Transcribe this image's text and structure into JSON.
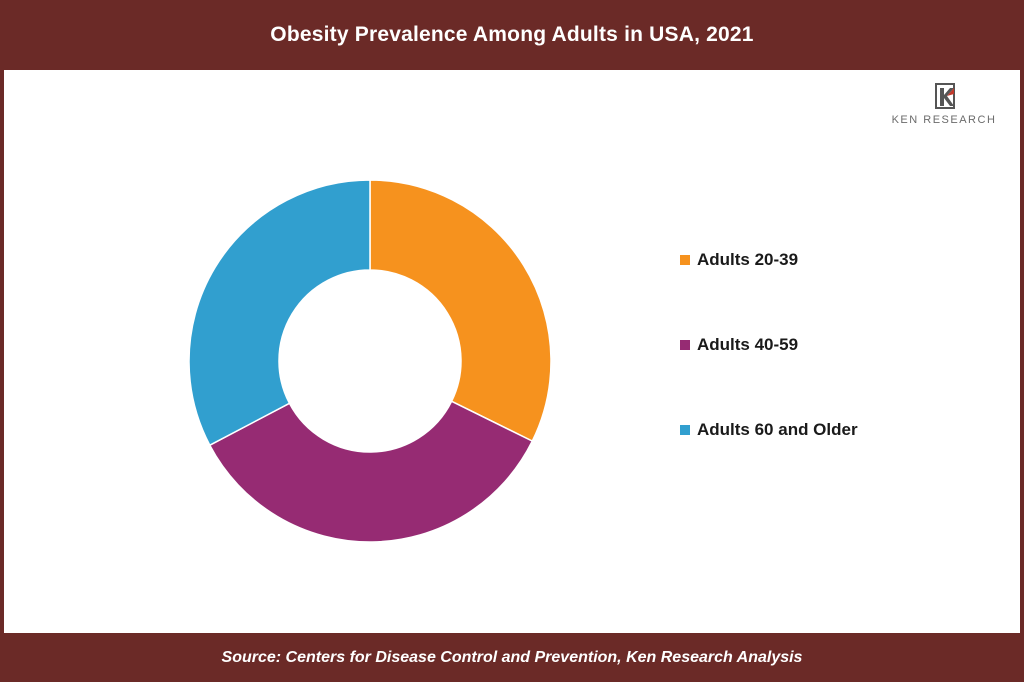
{
  "header": {
    "title": "Obesity Prevalence Among Adults in USA, 2021"
  },
  "logo": {
    "brand": "KEN RESEARCH",
    "icon": "ken-research-logo-icon"
  },
  "footer": {
    "source": "Source: Centers for Disease Control and Prevention, Ken Research Analysis"
  },
  "colors": {
    "header_bg": "#6b2a27",
    "orange": "#f6921e",
    "purple": "#962b73",
    "blue": "#319fcf"
  },
  "chart_data": {
    "type": "pie",
    "subtype": "donut",
    "title": "Obesity Prevalence Among Adults in USA, 2021",
    "categories": [
      "Adults 20-39",
      "Adults 40-59",
      "Adults 60 and Older"
    ],
    "values": [
      32.3,
      35.0,
      32.7
    ],
    "colors": [
      "#f6921e",
      "#962b73",
      "#319fcf"
    ],
    "start": "12 o'clock",
    "direction": "clockwise",
    "legend_position": "right",
    "data_labels": false
  }
}
